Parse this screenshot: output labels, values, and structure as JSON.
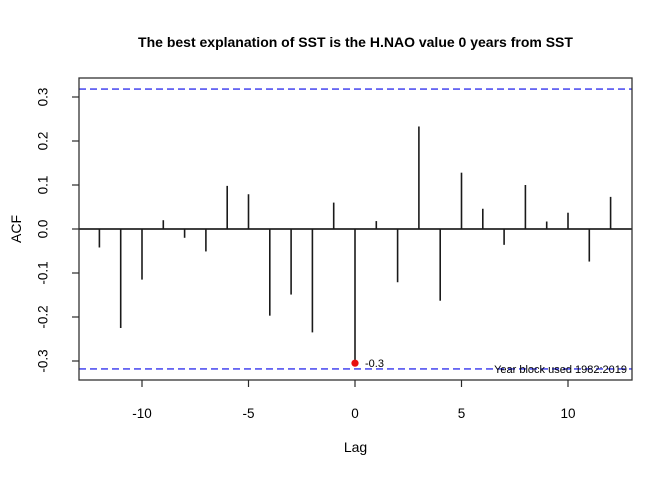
{
  "chart_data": {
    "type": "bar",
    "subtype": "acf-lollipop",
    "title": "The best explanation of SST is the H.NAO value 0 years from SST",
    "xlabel": "Lag",
    "ylabel": "ACF",
    "lags": [
      -12,
      -11,
      -10,
      -9,
      -8,
      -7,
      -6,
      -5,
      -4,
      -3,
      -2,
      -1,
      0,
      1,
      2,
      3,
      4,
      5,
      6,
      7,
      8,
      9,
      10,
      11,
      12
    ],
    "values": [
      -0.042,
      -0.225,
      -0.115,
      0.02,
      -0.02,
      -0.051,
      0.098,
      0.079,
      -0.197,
      -0.149,
      -0.235,
      0.06,
      -0.305,
      0.018,
      -0.121,
      0.233,
      -0.163,
      0.128,
      0.046,
      -0.036,
      0.1,
      0.017,
      0.037,
      -0.074,
      0.073
    ],
    "xticks": [
      -10,
      -5,
      0,
      5,
      10
    ],
    "xtick_labels": [
      "-10",
      "-5",
      "0",
      "5",
      "10"
    ],
    "ytick_values": [
      0.3,
      0.2,
      0.1,
      0.0,
      -0.1,
      -0.2,
      -0.3
    ],
    "ytick_labels": [
      "0.3",
      "0.2",
      "0.1",
      "0.0",
      "-0.1",
      "-0.2",
      "-0.3"
    ],
    "xlim": [
      -12.96,
      13.0
    ],
    "ylim": [
      -0.343,
      0.343
    ],
    "confidence_bound": 0.318,
    "grid": false,
    "legend": null,
    "highlight_point": {
      "lag": 0,
      "value": -0.305,
      "label": "-0.3"
    },
    "annotation": "Year block used 1982:2019"
  },
  "colors": {
    "background": "#ffffff",
    "bar": "#1a1a1a",
    "axis": "#2a2a2a",
    "box": "#333333",
    "zero_line": "#000000",
    "confidence_line": "#3333ee",
    "highlight_point": "#e81010",
    "text": "#000000"
  }
}
